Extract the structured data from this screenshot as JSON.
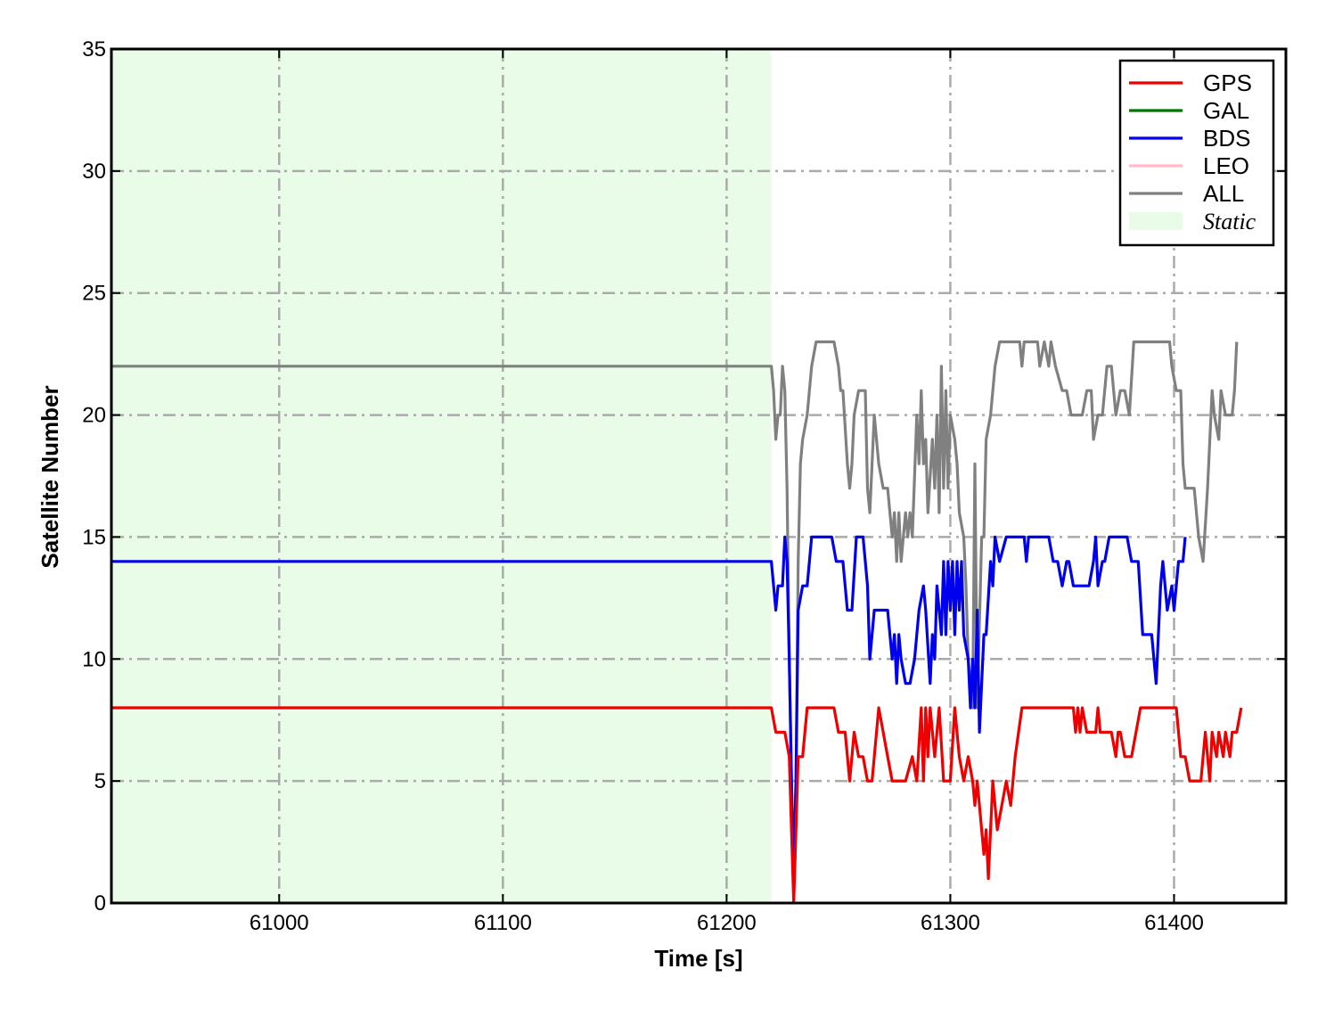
{
  "chart_data": {
    "type": "line",
    "xlabel": "Time [s]",
    "ylabel": "Satellite Number",
    "xlim": [
      60925,
      61450
    ],
    "ylim": [
      0,
      35
    ],
    "xticks": [
      61000,
      61100,
      61200,
      61300,
      61400
    ],
    "yticks": [
      0,
      5,
      10,
      15,
      20,
      25,
      30,
      35
    ],
    "xtick_labels": [
      "61000",
      "61100",
      "61200",
      "61300",
      "61400"
    ],
    "ytick_labels": [
      "0",
      "5",
      "10",
      "15",
      "20",
      "25",
      "30",
      "35"
    ],
    "grid": true,
    "legend_position": "top-right",
    "shaded_region": {
      "label": "Static",
      "x_start": 60925,
      "x_end": 61220,
      "color": "#e8fce8"
    },
    "series": [
      {
        "name": "GPS",
        "color": "#ee0000",
        "points": [
          [
            60925,
            8
          ],
          [
            61220,
            8
          ],
          [
            61222,
            7
          ],
          [
            61226,
            7
          ],
          [
            61228,
            6
          ],
          [
            61229,
            3
          ],
          [
            61230,
            0
          ],
          [
            61231,
            3
          ],
          [
            61232,
            6
          ],
          [
            61234,
            6
          ],
          [
            61236,
            8
          ],
          [
            61241,
            8
          ],
          [
            61248,
            8
          ],
          [
            61250,
            7
          ],
          [
            61253,
            7
          ],
          [
            61255,
            5
          ],
          [
            61257,
            7
          ],
          [
            61259,
            6
          ],
          [
            61261,
            6
          ],
          [
            61263,
            5
          ],
          [
            61265,
            5
          ],
          [
            61267,
            7
          ],
          [
            61268,
            8
          ],
          [
            61270,
            7
          ],
          [
            61272,
            6
          ],
          [
            61274,
            5
          ],
          [
            61280,
            5
          ],
          [
            61283,
            6
          ],
          [
            61285,
            5
          ],
          [
            61287,
            8
          ],
          [
            61288,
            5
          ],
          [
            61289,
            8
          ],
          [
            61290,
            6
          ],
          [
            61291,
            8
          ],
          [
            61293,
            6
          ],
          [
            61295,
            8
          ],
          [
            61297,
            5
          ],
          [
            61300,
            5
          ],
          [
            61302,
            8
          ],
          [
            61304,
            6
          ],
          [
            61306,
            5
          ],
          [
            61308,
            6
          ],
          [
            61310,
            5
          ],
          [
            61311,
            4
          ],
          [
            61312,
            5
          ],
          [
            61313,
            4
          ],
          [
            61315,
            2
          ],
          [
            61316,
            3
          ],
          [
            61317,
            1
          ],
          [
            61319,
            5
          ],
          [
            61321,
            3
          ],
          [
            61323,
            4
          ],
          [
            61325,
            5
          ],
          [
            61327,
            4
          ],
          [
            61329,
            6
          ],
          [
            61332,
            8
          ],
          [
            61355,
            8
          ],
          [
            61356,
            7
          ],
          [
            61357,
            8
          ],
          [
            61358,
            7
          ],
          [
            61359,
            8
          ],
          [
            61361,
            7
          ],
          [
            61365,
            7
          ],
          [
            61366,
            8
          ],
          [
            61367,
            7
          ],
          [
            61372,
            7
          ],
          [
            61374,
            6
          ],
          [
            61375,
            7
          ],
          [
            61376,
            7
          ],
          [
            61378,
            6
          ],
          [
            61381,
            6
          ],
          [
            61383,
            7
          ],
          [
            61385,
            8
          ],
          [
            61401,
            8
          ],
          [
            61403,
            6
          ],
          [
            61405,
            6
          ],
          [
            61407,
            5
          ],
          [
            61412,
            5
          ],
          [
            61414,
            7
          ],
          [
            61416,
            5
          ],
          [
            61417,
            7
          ],
          [
            61419,
            6
          ],
          [
            61420,
            7
          ],
          [
            61422,
            6
          ],
          [
            61423,
            7
          ],
          [
            61425,
            6
          ],
          [
            61426,
            7
          ],
          [
            61428,
            7
          ],
          [
            61430,
            8
          ]
        ]
      },
      {
        "name": "GAL",
        "color": "#007700",
        "points": []
      },
      {
        "name": "BDS",
        "color": "#0000ee",
        "points": [
          [
            60925,
            14
          ],
          [
            61220,
            14
          ],
          [
            61222,
            12
          ],
          [
            61223,
            13
          ],
          [
            61225,
            13
          ],
          [
            61226,
            15
          ],
          [
            61227,
            14
          ],
          [
            61228,
            10
          ],
          [
            61229,
            5
          ],
          [
            61230,
            1
          ],
          [
            61231,
            5
          ],
          [
            61232,
            12
          ],
          [
            61234,
            13
          ],
          [
            61236,
            13
          ],
          [
            61238,
            15
          ],
          [
            61247,
            15
          ],
          [
            61249,
            14
          ],
          [
            61252,
            14
          ],
          [
            61254,
            12
          ],
          [
            61256,
            12
          ],
          [
            61258,
            15
          ],
          [
            61261,
            15
          ],
          [
            61263,
            13
          ],
          [
            61264,
            10
          ],
          [
            61266,
            12
          ],
          [
            61272,
            12
          ],
          [
            61274,
            10
          ],
          [
            61275,
            11
          ],
          [
            61276,
            9
          ],
          [
            61277,
            11
          ],
          [
            61278,
            10
          ],
          [
            61280,
            9
          ],
          [
            61282,
            9
          ],
          [
            61284,
            10
          ],
          [
            61286,
            12
          ],
          [
            61288,
            13
          ],
          [
            61289,
            12
          ],
          [
            61291,
            9
          ],
          [
            61292,
            11
          ],
          [
            61293,
            10
          ],
          [
            61294,
            13
          ],
          [
            61296,
            11
          ],
          [
            61297,
            14
          ],
          [
            61298,
            11
          ],
          [
            61299,
            14
          ],
          [
            61300,
            12
          ],
          [
            61301,
            14
          ],
          [
            61302,
            11
          ],
          [
            61303,
            14
          ],
          [
            61304,
            12
          ],
          [
            61305,
            14
          ],
          [
            61306,
            11
          ],
          [
            61308,
            10
          ],
          [
            61309,
            8
          ],
          [
            61310,
            10
          ],
          [
            61311,
            8
          ],
          [
            61312,
            12
          ],
          [
            61313,
            7
          ],
          [
            61315,
            11
          ],
          [
            61316,
            11
          ],
          [
            61318,
            14
          ],
          [
            61319,
            13
          ],
          [
            61320,
            15
          ],
          [
            61322,
            14
          ],
          [
            61325,
            15
          ],
          [
            61333,
            15
          ],
          [
            61334,
            14
          ],
          [
            61335,
            15
          ],
          [
            61344,
            15
          ],
          [
            61346,
            14
          ],
          [
            61348,
            14
          ],
          [
            61350,
            13
          ],
          [
            61352,
            14
          ],
          [
            61353,
            14
          ],
          [
            61355,
            13
          ],
          [
            61362,
            13
          ],
          [
            61364,
            14
          ],
          [
            61365,
            15
          ],
          [
            61366,
            13
          ],
          [
            61368,
            14
          ],
          [
            61369,
            14
          ],
          [
            61371,
            15
          ],
          [
            61379,
            15
          ],
          [
            61381,
            14
          ],
          [
            61384,
            14
          ],
          [
            61386,
            11
          ],
          [
            61390,
            11
          ],
          [
            61392,
            9
          ],
          [
            61394,
            13
          ],
          [
            61395,
            14
          ],
          [
            61397,
            12
          ],
          [
            61399,
            13
          ],
          [
            61400,
            12
          ],
          [
            61402,
            14
          ],
          [
            61404,
            14
          ],
          [
            61405,
            15
          ]
        ]
      },
      {
        "name": "LEO",
        "color": "#ffbbc8",
        "points": []
      },
      {
        "name": "ALL",
        "color": "#808080",
        "points": [
          [
            60925,
            22
          ],
          [
            61220,
            22
          ],
          [
            61221,
            21
          ],
          [
            61222,
            19
          ],
          [
            61223,
            20
          ],
          [
            61224,
            20
          ],
          [
            61225,
            22
          ],
          [
            61226,
            21
          ],
          [
            61227,
            17
          ],
          [
            61228,
            10
          ],
          [
            61229,
            5
          ],
          [
            61230,
            1
          ],
          [
            61231,
            5
          ],
          [
            61232,
            14
          ],
          [
            61233,
            18
          ],
          [
            61234,
            19
          ],
          [
            61236,
            20
          ],
          [
            61238,
            22
          ],
          [
            61240,
            23
          ],
          [
            61248,
            23
          ],
          [
            61250,
            22
          ],
          [
            61251,
            21
          ],
          [
            61252,
            21
          ],
          [
            61254,
            18
          ],
          [
            61255,
            17
          ],
          [
            61256,
            18
          ],
          [
            61257,
            20
          ],
          [
            61259,
            21
          ],
          [
            61262,
            21
          ],
          [
            61263,
            17
          ],
          [
            61264,
            16
          ],
          [
            61266,
            20
          ],
          [
            61268,
            18
          ],
          [
            61270,
            17
          ],
          [
            61272,
            17
          ],
          [
            61274,
            15
          ],
          [
            61275,
            16
          ],
          [
            61276,
            14
          ],
          [
            61277,
            16
          ],
          [
            61278,
            14
          ],
          [
            61279,
            15
          ],
          [
            61280,
            16
          ],
          [
            61281,
            15
          ],
          [
            61282,
            16
          ],
          [
            61283,
            15
          ],
          [
            61285,
            20
          ],
          [
            61286,
            18
          ],
          [
            61287,
            21
          ],
          [
            61288,
            18
          ],
          [
            61289,
            19
          ],
          [
            61290,
            16
          ],
          [
            61292,
            19
          ],
          [
            61293,
            17
          ],
          [
            61294,
            20
          ],
          [
            61295,
            16
          ],
          [
            61296,
            22
          ],
          [
            61297,
            17
          ],
          [
            61298,
            21
          ],
          [
            61299,
            17
          ],
          [
            61300,
            20
          ],
          [
            61302,
            19
          ],
          [
            61303,
            18
          ],
          [
            61304,
            16
          ],
          [
            61306,
            15
          ],
          [
            61307,
            13
          ],
          [
            61308,
            10
          ],
          [
            61309,
            9
          ],
          [
            61310,
            8
          ],
          [
            61311,
            18
          ],
          [
            61312,
            8
          ],
          [
            61314,
            15
          ],
          [
            61315,
            15
          ],
          [
            61316,
            19
          ],
          [
            61318,
            20
          ],
          [
            61320,
            22
          ],
          [
            61322,
            23
          ],
          [
            61331,
            23
          ],
          [
            61332,
            22
          ],
          [
            61333,
            23
          ],
          [
            61339,
            23
          ],
          [
            61340,
            22
          ],
          [
            61342,
            23
          ],
          [
            61344,
            22
          ],
          [
            61345,
            23
          ],
          [
            61347,
            22
          ],
          [
            61350,
            21
          ],
          [
            61352,
            21
          ],
          [
            61354,
            20
          ],
          [
            61359,
            20
          ],
          [
            61361,
            21
          ],
          [
            61363,
            21
          ],
          [
            61364,
            19
          ],
          [
            61366,
            20
          ],
          [
            61368,
            20
          ],
          [
            61370,
            22
          ],
          [
            61372,
            22
          ],
          [
            61374,
            20
          ],
          [
            61376,
            21
          ],
          [
            61378,
            21
          ],
          [
            61380,
            20
          ],
          [
            61382,
            23
          ],
          [
            61398,
            23
          ],
          [
            61399,
            22
          ],
          [
            61401,
            21
          ],
          [
            61403,
            21
          ],
          [
            61404,
            18
          ],
          [
            61405,
            17
          ],
          [
            61409,
            17
          ],
          [
            61411,
            15
          ],
          [
            61413,
            14
          ],
          [
            61415,
            17
          ],
          [
            61417,
            21
          ],
          [
            61418,
            20
          ],
          [
            61420,
            19
          ],
          [
            61421,
            21
          ],
          [
            61423,
            20
          ],
          [
            61426,
            20
          ],
          [
            61427,
            21
          ],
          [
            61428,
            23
          ]
        ]
      }
    ]
  }
}
